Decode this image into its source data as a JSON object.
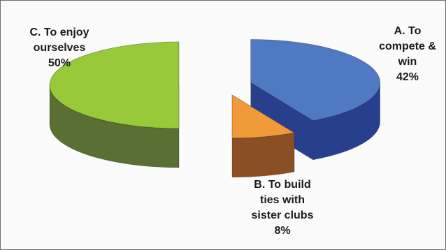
{
  "chart_data": {
    "type": "pie",
    "title": "",
    "style": "3d-exploded",
    "slices": [
      {
        "name": "A. To compete & win",
        "value": 42,
        "label_lines": [
          "A. To",
          "compete &",
          "win",
          "42%"
        ],
        "top_color": "#4f79c3",
        "side_color": "#283f8e"
      },
      {
        "name": "B. To build ties with sister clubs",
        "value": 8,
        "label_lines": [
          "B. To build",
          "ties with",
          "sister clubs",
          "8%"
        ],
        "top_color": "#f09a3a",
        "side_color": "#8a4f22"
      },
      {
        "name": "C. To enjoy ourselves",
        "value": 50,
        "label_lines": [
          "C. To enjoy",
          "ourselves",
          "50%"
        ],
        "top_color": "#97c93a",
        "side_color": "#596f33"
      }
    ]
  }
}
